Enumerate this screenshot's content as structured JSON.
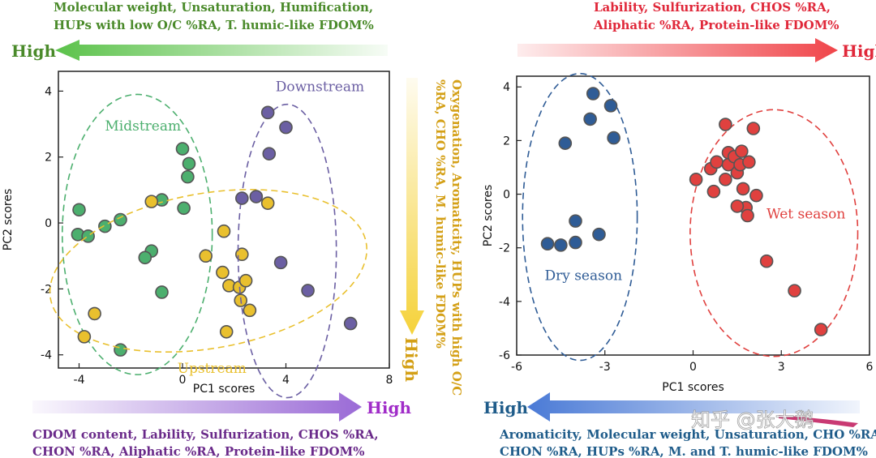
{
  "colors": {
    "green": "#4caf6e",
    "yellow": "#e9c02e",
    "purple": "#6b5fa3",
    "blue": "#2f5c96",
    "red": "#e0413f",
    "green_text": "#4a8a2a",
    "red_text": "#e0283a",
    "purple_text": "#6a2a8a",
    "blue_text": "#1f5c8a",
    "yellow_text": "#d4a017"
  },
  "annotations": {
    "top_left": {
      "line1": "Molecular weight, Unsaturation, Humification,",
      "line2": "HUPs with low O/C %RA, T. humic-like FDOM%",
      "high": "High"
    },
    "top_right": {
      "line1": "Lability, Sulfurization, CHOS %RA,",
      "line2": "Aliphatic %RA, Protein-like FDOM%",
      "high": "High"
    },
    "vertical_mid": {
      "line1": "Oxygenation, Aromaticity, HUPs with high O/C",
      "line2": "%RA, CHO %RA, M. humic-like FDOM%",
      "high": "High"
    },
    "bottom_left": {
      "line1": "CDOM content, Lability, Sulfurization, CHOS %RA,",
      "line2": "CHON %RA, Aliphatic %RA, Protein-like FDOM%",
      "high": "High"
    },
    "bottom_right": {
      "line1": "Aromaticity, Molecular weight, Unsaturation, CHO %RA,",
      "line2": "CHON %RA, HUPs %RA, M. and T. humic-like FDOM%",
      "high": "High"
    },
    "watermark": "知乎 @张大鹅"
  },
  "chart_data": [
    {
      "type": "scatter",
      "title": "",
      "xlabel": "PC1 scores",
      "ylabel": "PC2 scores",
      "xlim": [
        -4.8,
        8
      ],
      "ylim": [
        -4.4,
        4.6
      ],
      "xticks": [
        -4,
        0,
        4,
        8
      ],
      "yticks": [
        -4,
        -2,
        0,
        2,
        4
      ],
      "xtick_labels": [
        "-4",
        "0",
        "4",
        "8"
      ],
      "ytick_labels": [
        "-4",
        "-2",
        "0",
        "2",
        "4"
      ],
      "groups": [
        {
          "name": "Midstream",
          "color_key": "green",
          "ellipse": {
            "cx": -1.75,
            "cy": -0.35,
            "rx": 2.9,
            "ry": 4.25
          },
          "label_pos": [
            -3.0,
            2.8
          ],
          "points": [
            [
              -4.0,
              0.4
            ],
            [
              -4.05,
              -0.35
            ],
            [
              -3.65,
              -0.4
            ],
            [
              -3.0,
              -0.1
            ],
            [
              -2.4,
              0.1
            ],
            [
              -2.4,
              -3.85
            ],
            [
              -1.2,
              -0.85
            ],
            [
              -1.45,
              -1.05
            ],
            [
              -0.8,
              0.7
            ],
            [
              -0.8,
              -2.1
            ],
            [
              0.0,
              2.25
            ],
            [
              0.25,
              1.8
            ],
            [
              0.2,
              1.4
            ],
            [
              0.05,
              0.45
            ]
          ]
        },
        {
          "name": "Upstream",
          "color_key": "yellow",
          "ellipse": {
            "cx": 1.0,
            "cy": -1.45,
            "rx": 6.2,
            "ry": 2.35,
            "rotate": -10
          },
          "label_pos": [
            -0.2,
            -4.55
          ],
          "points": [
            [
              -1.2,
              0.65
            ],
            [
              -3.4,
              -2.75
            ],
            [
              -3.8,
              -3.45
            ],
            [
              0.9,
              -1.0
            ],
            [
              1.6,
              -0.25
            ],
            [
              1.55,
              -1.5
            ],
            [
              1.8,
              -1.9
            ],
            [
              2.2,
              -1.95
            ],
            [
              2.45,
              -1.75
            ],
            [
              2.25,
              -2.35
            ],
            [
              2.6,
              -2.65
            ],
            [
              1.7,
              -3.3
            ],
            [
              2.3,
              -0.95
            ],
            [
              3.3,
              0.6
            ]
          ]
        },
        {
          "name": "Downstream",
          "color_key": "purple",
          "ellipse": {
            "cx": 4.05,
            "cy": -0.85,
            "rx": 1.9,
            "ry": 4.45
          },
          "label_pos": [
            3.6,
            4.0
          ],
          "points": [
            [
              3.3,
              3.35
            ],
            [
              4.0,
              2.9
            ],
            [
              3.35,
              2.1
            ],
            [
              2.3,
              0.75
            ],
            [
              2.85,
              0.8
            ],
            [
              3.8,
              -1.2
            ],
            [
              4.85,
              -2.05
            ],
            [
              6.5,
              -3.05
            ]
          ]
        }
      ]
    },
    {
      "type": "scatter",
      "title": "",
      "xlabel": "PC1 scores",
      "ylabel": "PC2 scores",
      "xlim": [
        -6,
        6
      ],
      "ylim": [
        -6,
        4.4
      ],
      "xticks": [
        -6,
        -3,
        0,
        3,
        6
      ],
      "yticks": [
        -6,
        -4,
        -2,
        0,
        2,
        4
      ],
      "xtick_labels": [
        "-6",
        "-3",
        "0",
        "3",
        "6"
      ],
      "ytick_labels": [
        "-6",
        "-4",
        "-2",
        "0",
        "2",
        "4"
      ],
      "groups": [
        {
          "name": "Dry season",
          "color_key": "blue",
          "ellipse": {
            "cx": -3.85,
            "cy": -0.85,
            "rx": 1.95,
            "ry": 5.35
          },
          "label_pos": [
            -5.05,
            -3.2
          ],
          "points": [
            [
              -3.4,
              3.75
            ],
            [
              -2.8,
              3.3
            ],
            [
              -3.5,
              2.8
            ],
            [
              -4.35,
              1.9
            ],
            [
              -2.7,
              2.1
            ],
            [
              -4.0,
              -1.0
            ],
            [
              -4.95,
              -1.85
            ],
            [
              -4.5,
              -1.9
            ],
            [
              -4.0,
              -1.8
            ],
            [
              -3.2,
              -1.5
            ]
          ]
        },
        {
          "name": "Wet season",
          "color_key": "red",
          "ellipse": {
            "cx": 2.75,
            "cy": -1.45,
            "rx": 2.85,
            "ry": 4.6
          },
          "label_pos": [
            2.5,
            -0.9
          ],
          "points": [
            [
              0.1,
              0.55
            ],
            [
              0.6,
              0.95
            ],
            [
              0.8,
              1.2
            ],
            [
              0.7,
              0.1
            ],
            [
              1.1,
              0.55
            ],
            [
              1.2,
              1.1
            ],
            [
              1.1,
              2.6
            ],
            [
              1.2,
              1.55
            ],
            [
              1.4,
              1.4
            ],
            [
              1.5,
              0.8
            ],
            [
              1.6,
              1.1
            ],
            [
              1.65,
              1.6
            ],
            [
              1.7,
              0.2
            ],
            [
              1.8,
              -0.5
            ],
            [
              1.85,
              -0.8
            ],
            [
              1.5,
              -0.45
            ],
            [
              1.9,
              1.2
            ],
            [
              2.05,
              2.45
            ],
            [
              2.15,
              -0.05
            ],
            [
              2.5,
              -2.5
            ],
            [
              3.45,
              -3.6
            ],
            [
              4.35,
              -5.05
            ]
          ]
        }
      ]
    }
  ]
}
